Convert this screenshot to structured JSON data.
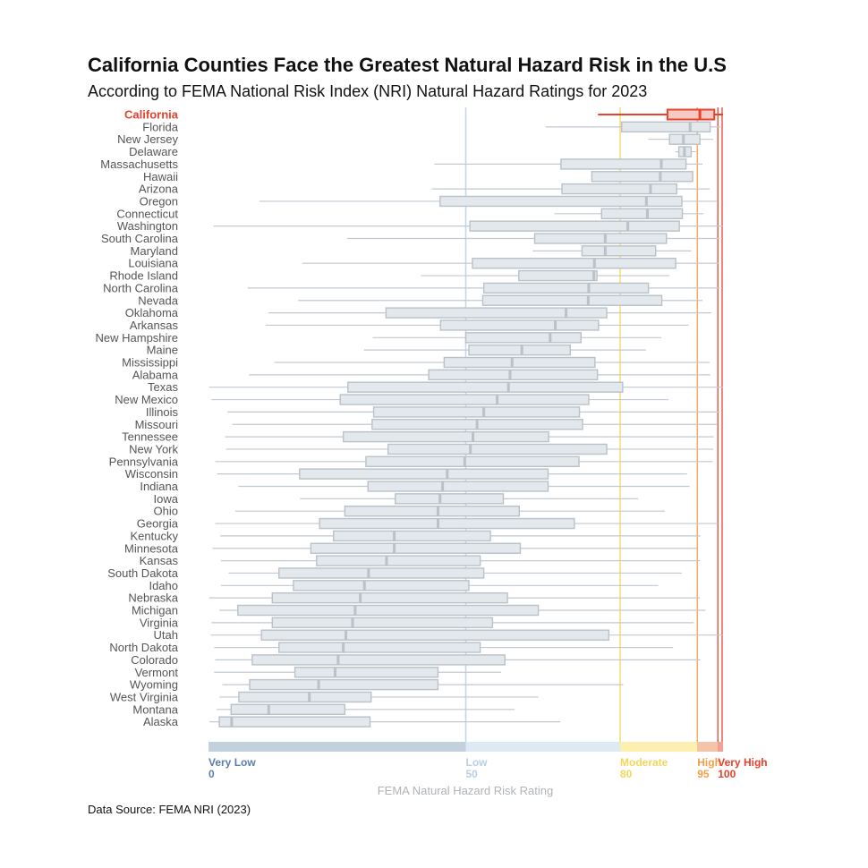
{
  "title": "California Counties Face the Greatest Natural Hazard Risk in the U.S",
  "subtitle": "According to FEMA National Risk Index (NRI) Natural Hazard Ratings for 2023",
  "source": "Data Source: FEMA NRI (2023)",
  "chart_data": {
    "type": "boxplot",
    "xlabel": "FEMA Natural Hazard Risk Rating",
    "xlim": [
      0,
      100
    ],
    "highlight_state": "California",
    "bands": [
      {
        "label": "Very Low",
        "value": "0",
        "from": 0,
        "to": 50,
        "color": "#5b7fa8",
        "bar_color": "#c3d0de"
      },
      {
        "label": "Low",
        "value": "50",
        "from": 50,
        "to": 80,
        "color": "#b9cfe2",
        "bar_color": "#deeaf3"
      },
      {
        "label": "Moderate",
        "value": "80",
        "from": 80,
        "to": 95,
        "color": "#f6d55c",
        "bar_color": "#fdefb0"
      },
      {
        "label": "High",
        "value": "95",
        "from": 95,
        "to": 99,
        "color": "#f0a04b",
        "bar_color": "#f5c3a8"
      },
      {
        "label": "Very High",
        "value": "100",
        "from": 99,
        "to": 100,
        "color": "#e8412c",
        "bar_color": "#f2a199"
      }
    ],
    "states": [
      {
        "name": "California",
        "min": 75.7,
        "q1": 89.2,
        "median": 95.5,
        "q3": 98.3,
        "max": 100
      },
      {
        "name": "Florida",
        "min": 65.5,
        "q1": 80.3,
        "median": 93.6,
        "q3": 97.5,
        "max": 99.5
      },
      {
        "name": "New Jersey",
        "min": 85.5,
        "q1": 89.6,
        "median": 92.3,
        "q3": 95.5,
        "max": 98.1
      },
      {
        "name": "Delaware",
        "min": 90.7,
        "q1": 91.4,
        "median": 92.5,
        "q3": 93.8,
        "max": 94.7
      },
      {
        "name": "Massachusetts",
        "min": 43.9,
        "q1": 68.5,
        "median": 88.0,
        "q3": 92.8,
        "max": 96.0
      },
      {
        "name": "Hawaii",
        "min": 74.5,
        "q1": 74.5,
        "median": 87.8,
        "q3": 94.1,
        "max": 94.1
      },
      {
        "name": "Arizona",
        "min": 43.4,
        "q1": 68.7,
        "median": 85.9,
        "q3": 91.0,
        "max": 97.4
      },
      {
        "name": "Oregon",
        "min": 9.9,
        "q1": 45.0,
        "median": 85.1,
        "q3": 92.0,
        "max": 98.8
      },
      {
        "name": "Connecticut",
        "min": 67.2,
        "q1": 76.4,
        "median": 85.3,
        "q3": 92.1,
        "max": 96.2
      },
      {
        "name": "Washington",
        "min": 1.0,
        "q1": 50.8,
        "median": 81.5,
        "q3": 91.5,
        "max": 99.9
      },
      {
        "name": "South Carolina",
        "min": 26.9,
        "q1": 63.4,
        "median": 77.1,
        "q3": 89.0,
        "max": 99.3
      },
      {
        "name": "Maryland",
        "min": 63.0,
        "q1": 72.6,
        "median": 77.1,
        "q3": 86.9,
        "max": 93.8
      },
      {
        "name": "Louisiana",
        "min": 18.2,
        "q1": 51.3,
        "median": 75.0,
        "q3": 90.8,
        "max": 99.1
      },
      {
        "name": "Rhode Island",
        "min": 41.3,
        "q1": 60.3,
        "median": 74.9,
        "q3": 75.5,
        "max": 89.6
      },
      {
        "name": "North Carolina",
        "min": 7.6,
        "q1": 53.5,
        "median": 73.9,
        "q3": 85.5,
        "max": 99.3
      },
      {
        "name": "Nevada",
        "min": 17.4,
        "q1": 53.3,
        "median": 73.8,
        "q3": 88.1,
        "max": 96.0
      },
      {
        "name": "Oklahoma",
        "min": 11.6,
        "q1": 34.5,
        "median": 69.5,
        "q3": 77.4,
        "max": 97.7
      },
      {
        "name": "Arkansas",
        "min": 11.1,
        "q1": 45.1,
        "median": 67.4,
        "q3": 75.8,
        "max": 93.3
      },
      {
        "name": "New Hampshire",
        "min": 31.9,
        "q1": 50.0,
        "median": 66.4,
        "q3": 72.4,
        "max": 88.0
      },
      {
        "name": "Maine",
        "min": 30.2,
        "q1": 50.6,
        "median": 60.9,
        "q3": 70.3,
        "max": 85.0
      },
      {
        "name": "Mississippi",
        "min": 12.8,
        "q1": 45.8,
        "median": 59.0,
        "q3": 75.1,
        "max": 97.4
      },
      {
        "name": "Alabama",
        "min": 7.9,
        "q1": 42.8,
        "median": 58.6,
        "q3": 75.6,
        "max": 97.5
      },
      {
        "name": "Texas",
        "min": 0.1,
        "q1": 27.1,
        "median": 58.3,
        "q3": 80.5,
        "max": 99.9
      },
      {
        "name": "New Mexico",
        "min": 0.6,
        "q1": 25.6,
        "median": 56.1,
        "q3": 73.9,
        "max": 89.4
      },
      {
        "name": "Illinois",
        "min": 3.7,
        "q1": 32.1,
        "median": 53.5,
        "q3": 72.1,
        "max": 99.3
      },
      {
        "name": "Missouri",
        "min": 4.6,
        "q1": 31.8,
        "median": 52.2,
        "q3": 72.7,
        "max": 98.8
      },
      {
        "name": "Tennessee",
        "min": 3.2,
        "q1": 26.2,
        "median": 51.4,
        "q3": 66.1,
        "max": 98.2
      },
      {
        "name": "New York",
        "min": 3.4,
        "q1": 34.9,
        "median": 50.9,
        "q3": 77.4,
        "max": 98.1
      },
      {
        "name": "Pennsylvania",
        "min": 1.3,
        "q1": 30.6,
        "median": 49.8,
        "q3": 72.0,
        "max": 98.0
      },
      {
        "name": "Wisconsin",
        "min": 1.7,
        "q1": 17.7,
        "median": 46.4,
        "q3": 66.0,
        "max": 93.0
      },
      {
        "name": "Indiana",
        "min": 5.8,
        "q1": 31.0,
        "median": 45.5,
        "q3": 66.0,
        "max": 93.5
      },
      {
        "name": "Iowa",
        "min": 17.8,
        "q1": 36.3,
        "median": 45.0,
        "q3": 57.3,
        "max": 83.5
      },
      {
        "name": "Ohio",
        "min": 5.2,
        "q1": 26.5,
        "median": 44.6,
        "q3": 60.4,
        "max": 88.7
      },
      {
        "name": "Georgia",
        "min": 1.3,
        "q1": 21.6,
        "median": 44.6,
        "q3": 71.1,
        "max": 99.0
      },
      {
        "name": "Kentucky",
        "min": 2.3,
        "q1": 24.3,
        "median": 36.1,
        "q3": 54.8,
        "max": 95.6
      },
      {
        "name": "Minnesota",
        "min": 0.8,
        "q1": 19.9,
        "median": 36.1,
        "q3": 60.6,
        "max": 95.0
      },
      {
        "name": "Kansas",
        "min": 2.4,
        "q1": 21.0,
        "median": 34.6,
        "q3": 52.8,
        "max": 95.5
      },
      {
        "name": "South Dakota",
        "min": 3.9,
        "q1": 13.7,
        "median": 31.1,
        "q3": 53.5,
        "max": 92.0
      },
      {
        "name": "Idaho",
        "min": 2.4,
        "q1": 16.5,
        "median": 30.3,
        "q3": 50.6,
        "max": 87.4
      },
      {
        "name": "Nebraska",
        "min": 0.1,
        "q1": 12.4,
        "median": 29.5,
        "q3": 58.1,
        "max": 95.5
      },
      {
        "name": "Michigan",
        "min": 2.1,
        "q1": 5.7,
        "median": 28.5,
        "q3": 64.1,
        "max": 96.6
      },
      {
        "name": "Virginia",
        "min": 0.6,
        "q1": 12.4,
        "median": 28.0,
        "q3": 55.2,
        "max": 94.3
      },
      {
        "name": "Utah",
        "min": 0.4,
        "q1": 10.3,
        "median": 26.7,
        "q3": 77.8,
        "max": 99.9
      },
      {
        "name": "North Dakota",
        "min": 1.1,
        "q1": 13.7,
        "median": 26.2,
        "q3": 52.8,
        "max": 90.3
      },
      {
        "name": "Colorado",
        "min": 1.3,
        "q1": 8.5,
        "median": 25.2,
        "q3": 57.6,
        "max": 95.6
      },
      {
        "name": "Vermont",
        "min": 1.1,
        "q1": 16.8,
        "median": 24.6,
        "q3": 44.6,
        "max": 56.9
      },
      {
        "name": "Wyoming",
        "min": 2.7,
        "q1": 8.0,
        "median": 21.4,
        "q3": 44.6,
        "max": 80.6
      },
      {
        "name": "West Virginia",
        "min": 2.1,
        "q1": 5.9,
        "median": 19.6,
        "q3": 31.6,
        "max": 64.1
      },
      {
        "name": "Montana",
        "min": 1.6,
        "q1": 4.4,
        "median": 11.7,
        "q3": 26.5,
        "max": 59.5
      },
      {
        "name": "Alaska",
        "min": 0.2,
        "q1": 2.1,
        "median": 4.5,
        "q3": 31.4,
        "max": 68.4
      }
    ]
  }
}
